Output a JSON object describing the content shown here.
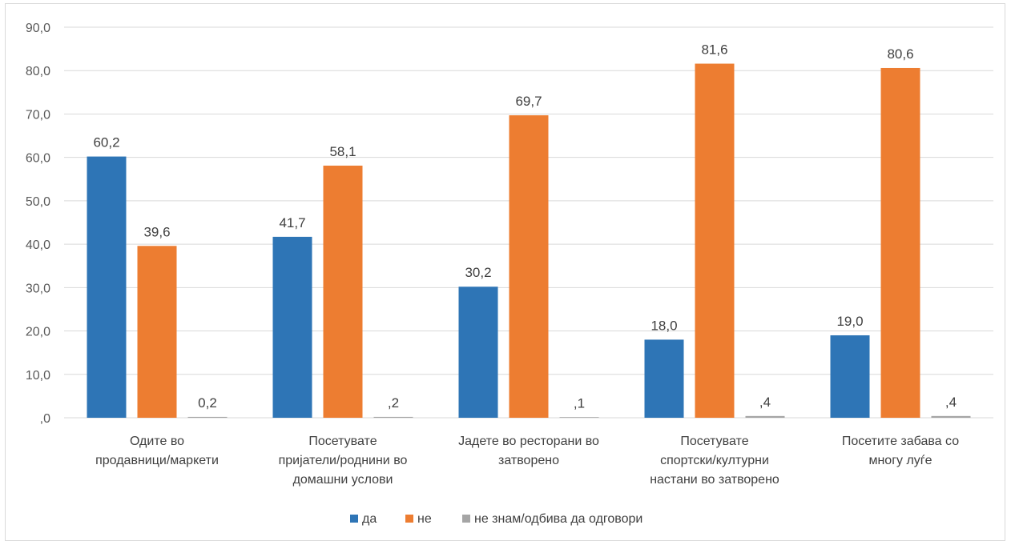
{
  "chart_data": {
    "type": "bar",
    "categories": [
      [
        "Одите во",
        "продавници/маркети"
      ],
      [
        "Посетувате",
        "пријатели/роднини во",
        "домашни услови"
      ],
      [
        "Јадете во ресторани во",
        "затворено"
      ],
      [
        "Посетувате",
        "спортски/културни",
        "настани во затворено"
      ],
      [
        "Посетите забава со",
        "многу луѓе"
      ]
    ],
    "series": [
      {
        "name": "да",
        "color": "#2e75b6",
        "values": [
          60.2,
          41.7,
          30.2,
          18.0,
          19.0
        ],
        "labels": [
          "60,2",
          "41,7",
          "30,2",
          "18,0",
          "19,0"
        ]
      },
      {
        "name": "не",
        "color": "#ed7d31",
        "values": [
          39.6,
          58.1,
          69.7,
          81.6,
          80.6
        ],
        "labels": [
          "39,6",
          "58,1",
          "69,7",
          "81,6",
          "80,6"
        ]
      },
      {
        "name": "не знам/одбива да одговори",
        "color": "#a5a5a5",
        "values": [
          0.2,
          0.2,
          0.1,
          0.4,
          0.4
        ],
        "labels": [
          "0,2",
          ",2",
          ",1",
          ",4",
          ",4"
        ]
      }
    ],
    "ylim": [
      0,
      90
    ],
    "yticks": [
      0,
      10,
      20,
      30,
      40,
      50,
      60,
      70,
      80,
      90
    ],
    "ytick_labels": [
      ",0",
      "10,0",
      "20,0",
      "30,0",
      "40,0",
      "50,0",
      "60,0",
      "70,0",
      "80,0",
      "90,0"
    ],
    "grid": true,
    "legend_position": "bottom",
    "gridline_color": "#d9d9d9"
  }
}
